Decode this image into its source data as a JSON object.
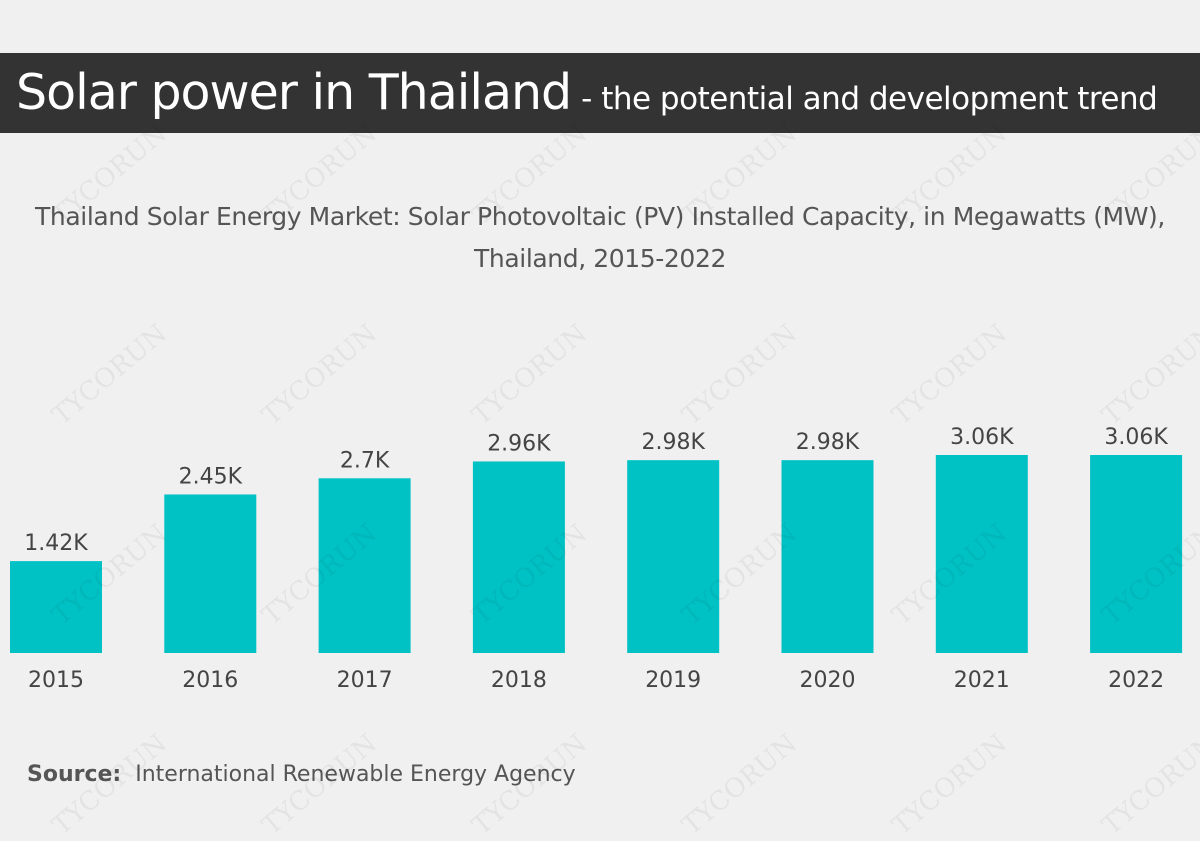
{
  "header": {
    "title": "Solar power in Thailand",
    "subtitle": "- the potential and development trend"
  },
  "watermark": "TYCORUN",
  "chart_data": {
    "type": "bar",
    "title": "Thailand Solar Energy Market: Solar Photovoltaic (PV) Installed Capacity, in Megawatts (MW), Thailand, 2015-2022",
    "categories": [
      "2015",
      "2016",
      "2017",
      "2018",
      "2019",
      "2020",
      "2021",
      "2022"
    ],
    "values": [
      1420,
      2450,
      2700,
      2960,
      2980,
      2980,
      3060,
      3060
    ],
    "data_labels": [
      "1.42K",
      "2.45K",
      "2.7K",
      "2.96K",
      "2.98K",
      "2.98K",
      "3.06K",
      "3.06K"
    ],
    "xlabel": "",
    "ylabel": "",
    "ylim": [
      0,
      3060
    ],
    "grid": false,
    "bar_color": "#00c1c4"
  },
  "source": {
    "label": "Source:",
    "text": "International Renewable Energy Agency"
  },
  "colors": {
    "background": "#f0f0f0",
    "banner": "#333333",
    "text": "#555555"
  }
}
